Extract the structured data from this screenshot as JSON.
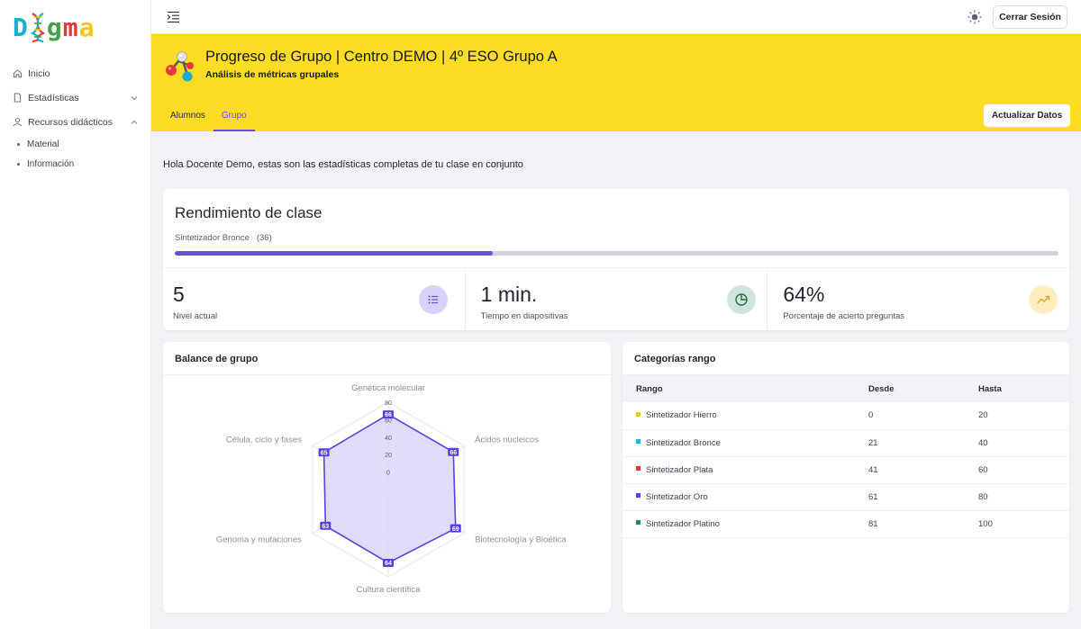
{
  "app": {
    "logo_text": "Dogma",
    "logo_colors": [
      "#19b0c9",
      "#e53935",
      "#43a047",
      "#e53935",
      "#f5c518"
    ]
  },
  "sidebar": {
    "items": [
      {
        "label": "Inicio",
        "icon": "home-icon"
      },
      {
        "label": "Estadísticas",
        "icon": "document-icon",
        "expand": "chevron-down-icon"
      },
      {
        "label": "Recursos didácticos",
        "icon": "user-icon",
        "expand": "chevron-up-icon"
      }
    ],
    "subitems": [
      {
        "label": "Material"
      },
      {
        "label": "Información"
      }
    ]
  },
  "topbar": {
    "menu_icon": "menu-collapse-icon",
    "theme_icon": "sun-icon",
    "logout_label": "Cerrar Sesión"
  },
  "header": {
    "title": "Progreso de Grupo | Centro DEMO | 4º ESO Grupo A",
    "subtitle": "Análisis de métricas grupales",
    "tabs": [
      {
        "label": "Alumnos",
        "active": false
      },
      {
        "label": "Grupo",
        "active": true
      }
    ],
    "refresh_label": "Actualizar Datos",
    "background_color": "#fddc24",
    "accent_color": "#6a4de6"
  },
  "greeting": "Hola Docente Demo, estas son las estadísticas completas de tu clase en conjunto",
  "performance": {
    "title": "Rendimiento de clase",
    "rank_label": "Sintetizador Bronce",
    "rank_value": "(36)",
    "progress_fraction": 0.36,
    "stats": [
      {
        "value": "5",
        "caption": "Nivel actual",
        "icon": "list-icon",
        "icon_bg": "#d9d1fb",
        "icon_color": "#6a4de6"
      },
      {
        "value": "1 min.",
        "caption": "Tiempo en diapositivas",
        "icon": "pie-chart-icon",
        "icon_bg": "#cfe6da",
        "icon_color": "#256b46"
      },
      {
        "value": "64%",
        "caption": "Porcentaje de acierto preguntas",
        "icon": "trending-up-icon",
        "icon_bg": "#fdefc2",
        "icon_color": "#e0a82e"
      }
    ]
  },
  "balance": {
    "title": "Balance de grupo"
  },
  "chart_data": {
    "type": "radar",
    "categories": [
      "Genética molecular",
      "Ácidos nucleicos",
      "Biotecnología y Bioética",
      "Cultura científica",
      "Genoma y mutaciones",
      "Célula, ciclo y fases"
    ],
    "values": [
      66,
      66,
      69,
      64,
      63,
      65
    ],
    "value_labels": [
      "66",
      "66",
      "69",
      "64",
      "63",
      "65"
    ],
    "ticks": [
      "0",
      "20",
      "40",
      "60",
      "80"
    ],
    "tick_values": [
      0,
      20,
      40,
      60,
      80
    ],
    "rmin": -20,
    "rmax": 80,
    "series_color": "#5b3fe0",
    "fill_color": "#ddd6fb"
  },
  "categories_table": {
    "title": "Categorías rango",
    "headers": [
      "Rango",
      "Desde",
      "Hasta"
    ],
    "rows": [
      {
        "name": "Sintetizador Hierro",
        "from": "0",
        "to": "20",
        "color": "#f5c518"
      },
      {
        "name": "Sintetizador Bronce",
        "from": "21",
        "to": "40",
        "color": "#19b8d4"
      },
      {
        "name": "Sintetizador Plata",
        "from": "41",
        "to": "60",
        "color": "#e53935"
      },
      {
        "name": "Sintetizador Oro",
        "from": "61",
        "to": "80",
        "color": "#5b3fe0"
      },
      {
        "name": "Sintetizador Platino",
        "from": "81",
        "to": "100",
        "color": "#1e8a4e"
      }
    ]
  }
}
